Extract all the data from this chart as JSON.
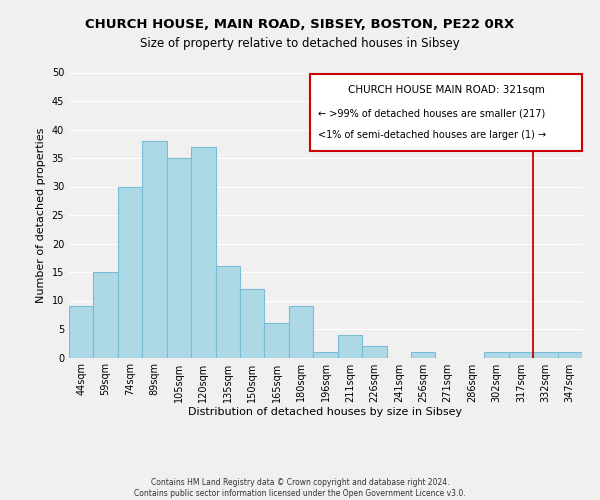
{
  "title": "CHURCH HOUSE, MAIN ROAD, SIBSEY, BOSTON, PE22 0RX",
  "subtitle": "Size of property relative to detached houses in Sibsey",
  "xlabel": "Distribution of detached houses by size in Sibsey",
  "ylabel": "Number of detached properties",
  "footer_line1": "Contains HM Land Registry data © Crown copyright and database right 2024.",
  "footer_line2": "Contains public sector information licensed under the Open Government Licence v3.0.",
  "bar_labels": [
    "44sqm",
    "59sqm",
    "74sqm",
    "89sqm",
    "105sqm",
    "120sqm",
    "135sqm",
    "150sqm",
    "165sqm",
    "180sqm",
    "196sqm",
    "211sqm",
    "226sqm",
    "241sqm",
    "256sqm",
    "271sqm",
    "286sqm",
    "302sqm",
    "317sqm",
    "332sqm",
    "347sqm"
  ],
  "bar_heights": [
    9,
    15,
    30,
    38,
    35,
    37,
    16,
    12,
    6,
    9,
    1,
    4,
    2,
    0,
    1,
    0,
    0,
    1,
    1,
    1,
    1
  ],
  "bar_color": "#add8e6",
  "bar_edge_color": "#7abcd6",
  "ylim": [
    0,
    50
  ],
  "yticks": [
    0,
    5,
    10,
    15,
    20,
    25,
    30,
    35,
    40,
    45,
    50
  ],
  "vline_x": 18.5,
  "vline_color": "#cc0000",
  "legend_title": "CHURCH HOUSE MAIN ROAD: 321sqm",
  "legend_line1": "← >99% of detached houses are smaller (217)",
  "legend_line2": "<1% of semi-detached houses are larger (1) →",
  "background_color": "#f0f0f0",
  "grid_color": "#ffffff",
  "title_fontsize": 9.5,
  "subtitle_fontsize": 8.5,
  "axis_label_fontsize": 8,
  "tick_fontsize": 7,
  "footer_fontsize": 5.5
}
